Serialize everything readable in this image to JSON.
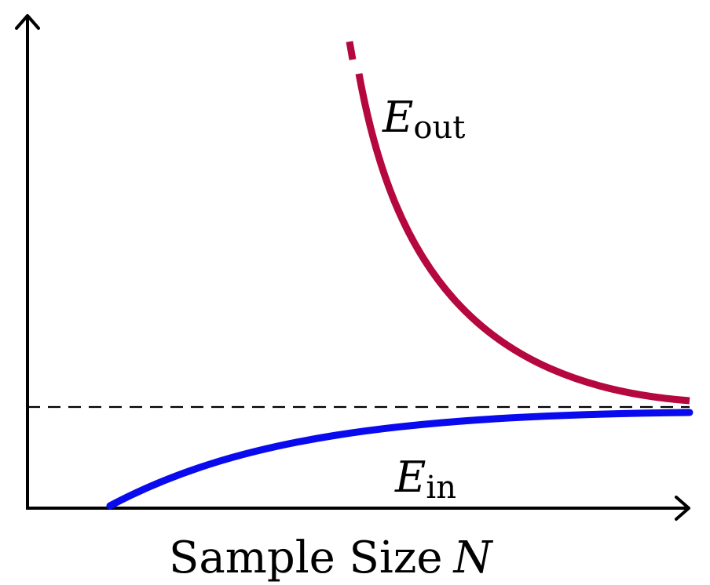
{
  "labels": {
    "e_out_symbol": "E",
    "e_out_subscript": "out",
    "e_in_symbol": "E",
    "e_in_subscript": "in",
    "x_axis_text": "Sample Size",
    "x_axis_variable": "N"
  },
  "colors": {
    "e_out": "#b5083f",
    "e_in": "#0a0aee",
    "asymptote": "#000000",
    "axes": "#000000"
  },
  "curves": {
    "e_out_style": "solid with short break near top",
    "e_in_style": "solid",
    "asymptote_style": "dashed"
  }
}
